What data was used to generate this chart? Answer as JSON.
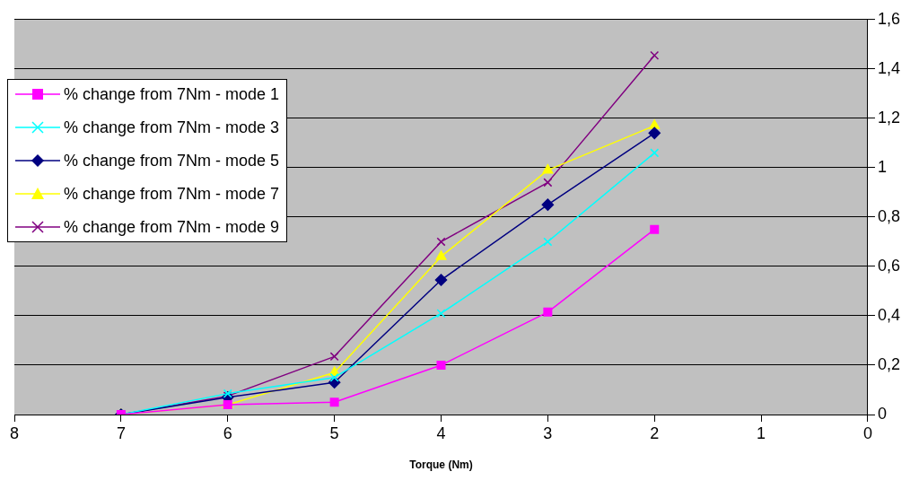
{
  "chart_data": {
    "type": "line",
    "xlabel": "Torque (Nm)",
    "x": [
      7,
      6,
      5,
      4,
      3,
      2
    ],
    "series": [
      {
        "name": "% change from 7Nm - mode 1",
        "color": "#ff00ff",
        "marker": "square",
        "values": [
          0,
          0.04,
          0.05,
          0.2,
          0.415,
          0.75
        ]
      },
      {
        "name": "% change from 7Nm - mode 3",
        "color": "#00ffff",
        "marker": "cross",
        "values": [
          0,
          0.085,
          0.15,
          0.41,
          0.7,
          1.06
        ]
      },
      {
        "name": "% change from 7Nm - mode 5",
        "color": "#000080",
        "marker": "diamond",
        "values": [
          0,
          0.07,
          0.13,
          0.545,
          0.85,
          1.14
        ]
      },
      {
        "name": "% change from 7Nm - mode 7",
        "color": "#ffff00",
        "marker": "triangle",
        "values": [
          0,
          0.04,
          0.17,
          0.64,
          0.99,
          1.17
        ]
      },
      {
        "name": "% change from 7Nm - mode 9",
        "color": "#800080",
        "marker": "cross",
        "values": [
          0,
          0.075,
          0.235,
          0.7,
          0.94,
          1.455
        ]
      }
    ],
    "xlim": [
      8,
      0
    ],
    "xticks": [
      8,
      7,
      6,
      5,
      4,
      3,
      2,
      1,
      0
    ],
    "ylim": [
      0,
      1.6
    ],
    "yticks": [
      0,
      {
        "value": 0.2,
        "label": "0,2"
      },
      {
        "value": 0.4,
        "label": "0,4"
      },
      {
        "value": 0.6,
        "label": "0,6"
      },
      {
        "value": 0.8,
        "label": "0,8"
      },
      1,
      {
        "value": 1.2,
        "label": "1,2"
      },
      {
        "value": 1.4,
        "label": "1,4"
      },
      {
        "value": 1.6,
        "label": "1,6"
      }
    ],
    "grid": "y",
    "legend": "top left",
    "line_style": "solid"
  }
}
